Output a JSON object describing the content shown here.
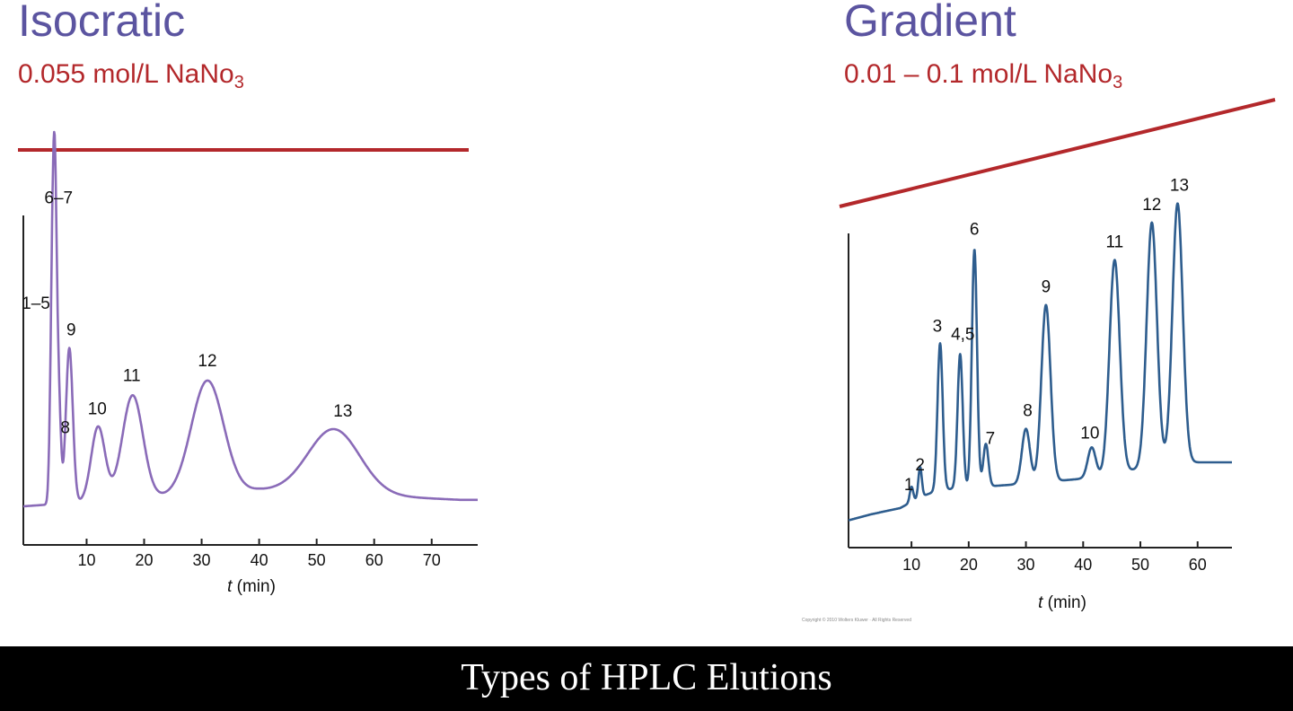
{
  "slide": {
    "left_title": "Isocratic",
    "left_concentration": "0.055 mol/L NaNo",
    "left_concentration_sub": "3",
    "right_title": "Gradient",
    "right_concentration": "0.01 – 0.1 mol/L NaNo",
    "right_concentration_sub": "3",
    "copyright": "Copyright © 2010 Wolters Kluwer · All Rights Reserved",
    "caption": "Types of HPLC Elutions"
  },
  "colors": {
    "title": "#5b54a0",
    "concentration": "#b3282b",
    "isocratic_trace": "#8a6bb8",
    "gradient_trace": "#2e5d8e",
    "caption_bar": "#000000"
  },
  "chart_data": [
    {
      "type": "line",
      "title": "Isocratic",
      "xlabel_italic": "t",
      "xlabel_rest": " (min)",
      "xlim": [
        -1,
        78
      ],
      "ylim": [
        0,
        100
      ],
      "xticks": [
        10,
        20,
        30,
        40,
        50,
        60,
        70
      ],
      "composition_line": {
        "start": 0.055,
        "end": 0.055
      },
      "baseline": [
        [
          -1,
          10
        ],
        [
          15,
          12
        ],
        [
          40,
          15
        ],
        [
          75,
          12
        ],
        [
          78,
          12
        ]
      ],
      "peaks": [
        {
          "label": "1–5",
          "t": 4.0,
          "height": 55,
          "width": 0.35
        },
        {
          "label": "6–7",
          "t": 4.5,
          "height": 88,
          "width": 0.35
        },
        {
          "label": "8",
          "t": 5.2,
          "height": 28,
          "width": 0.35
        },
        {
          "label": "9",
          "t": 7.0,
          "height": 48,
          "width": 0.6
        },
        {
          "label": "10",
          "t": 12.0,
          "height": 23,
          "width": 1.2
        },
        {
          "label": "11",
          "t": 18.0,
          "height": 32,
          "width": 1.8
        },
        {
          "label": "12",
          "t": 31.0,
          "height": 35,
          "width": 2.8
        },
        {
          "label": "13",
          "t": 53.0,
          "height": 20,
          "width": 4.5
        }
      ]
    },
    {
      "type": "line",
      "title": "Gradient",
      "xlabel_italic": "t",
      "xlabel_rest": " (min)",
      "xlim": [
        -1,
        66
      ],
      "ylim": [
        0,
        100
      ],
      "xticks": [
        10,
        20,
        30,
        40,
        50,
        60
      ],
      "composition_line": {
        "start": 0.01,
        "end": 0.1
      },
      "baseline": [
        [
          -1,
          6
        ],
        [
          3,
          8
        ],
        [
          8,
          10
        ],
        [
          12,
          14
        ],
        [
          15,
          16
        ],
        [
          30,
          18
        ],
        [
          42,
          20
        ],
        [
          50,
          23
        ],
        [
          57,
          25
        ],
        [
          65,
          25
        ]
      ],
      "peaks": [
        {
          "label": "1",
          "t": 10.0,
          "height": 5,
          "width": 0.3
        },
        {
          "label": "2",
          "t": 11.5,
          "height": 10,
          "width": 0.3
        },
        {
          "label": "3",
          "t": 15.0,
          "height": 48,
          "width": 0.45
        },
        {
          "label": "4,5",
          "t": 18.5,
          "height": 44,
          "width": 0.45
        },
        {
          "label": "6",
          "t": 21.0,
          "height": 78,
          "width": 0.45
        },
        {
          "label": "7",
          "t": 23.0,
          "height": 14,
          "width": 0.45
        },
        {
          "label": "8",
          "t": 30.0,
          "height": 18,
          "width": 0.7
        },
        {
          "label": "9",
          "t": 33.5,
          "height": 58,
          "width": 0.8
        },
        {
          "label": "10",
          "t": 41.5,
          "height": 10,
          "width": 0.7
        },
        {
          "label": "11",
          "t": 45.5,
          "height": 70,
          "width": 0.9
        },
        {
          "label": "12",
          "t": 52.0,
          "height": 80,
          "width": 0.9
        },
        {
          "label": "13",
          "t": 56.5,
          "height": 85,
          "width": 0.9
        }
      ]
    }
  ]
}
